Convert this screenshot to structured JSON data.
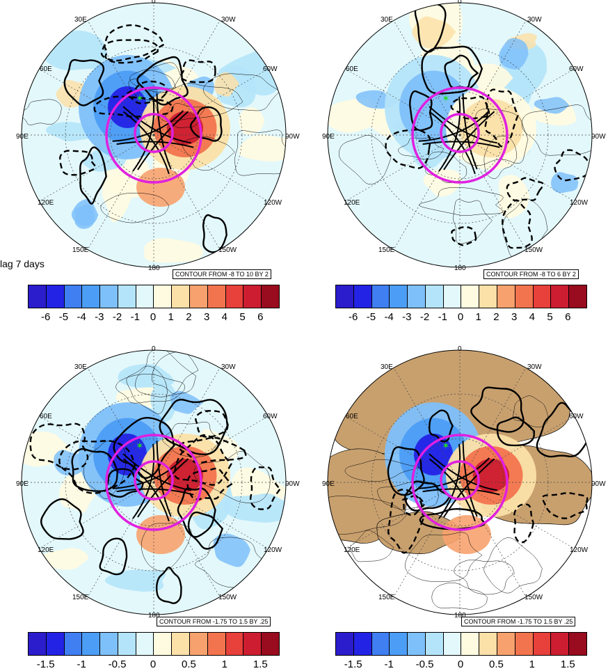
{
  "lag_label": "lag 7 days",
  "palette": [
    "#2b1ccc",
    "#2323e6",
    "#3f7ff2",
    "#4c9df5",
    "#7ec0fa",
    "#b4e4fa",
    "#e3f8fb",
    "#fffbe0",
    "#fbe0a8",
    "#f7a26e",
    "#f2744e",
    "#e8403a",
    "#cc1e30",
    "#990b1e"
  ],
  "panels": [
    {
      "id": "top-left",
      "lon_labels": [
        "0",
        "30E",
        "30W",
        "60E",
        "60W",
        "90E",
        "90W",
        "120E",
        "120W",
        "150E",
        "150W",
        "180"
      ],
      "contour_label": "CONTOUR FROM -8 TO 10 BY 2",
      "colorbar_ticks": [
        "-6",
        "-5",
        "-4",
        "-3",
        "-2",
        "-1",
        "0",
        "1",
        "2",
        "3",
        "4",
        "5",
        "6"
      ],
      "land_fill": false
    },
    {
      "id": "top-right",
      "lon_labels": [
        "0",
        "30E",
        "30W",
        "60E",
        "60W",
        "90E",
        "90W",
        "120E",
        "120W",
        "150E",
        "150W",
        "180"
      ],
      "contour_label": "CONTOUR FROM -8 TO 6 BY 2",
      "colorbar_ticks": [
        "-6",
        "-5",
        "-4",
        "-3",
        "-2",
        "-1",
        "0",
        "1",
        "2",
        "3",
        "4",
        "5",
        "6"
      ],
      "land_fill": false
    },
    {
      "id": "bottom-left",
      "lon_labels": [
        "0",
        "30E",
        "30W",
        "60E",
        "60W",
        "90E",
        "90W",
        "120E",
        "120W",
        "150E",
        "150W",
        "180"
      ],
      "contour_label": "CONTOUR FROM -1.75 TO 1.5 BY .25",
      "colorbar_ticks": [
        "-1.5",
        "-1",
        "-0.5",
        "0",
        "0.5",
        "1",
        "1.5"
      ],
      "land_fill": false
    },
    {
      "id": "bottom-right",
      "lon_labels": [
        "0",
        "30E",
        "30W",
        "60E",
        "60W",
        "90E",
        "90W",
        "120E",
        "120W",
        "150E",
        "150W",
        "180"
      ],
      "contour_label": "CONTOUR FROM -1.75 TO 1.5 BY .25",
      "colorbar_ticks": [
        "-1.5",
        "-1",
        "-0.5",
        "0",
        "0.5",
        "1",
        "1.5"
      ],
      "land_fill": true
    }
  ],
  "colors": {
    "circle": "#e020e0",
    "contour": "#000000",
    "land": "#c8a06e",
    "marker": "#22dd22"
  }
}
